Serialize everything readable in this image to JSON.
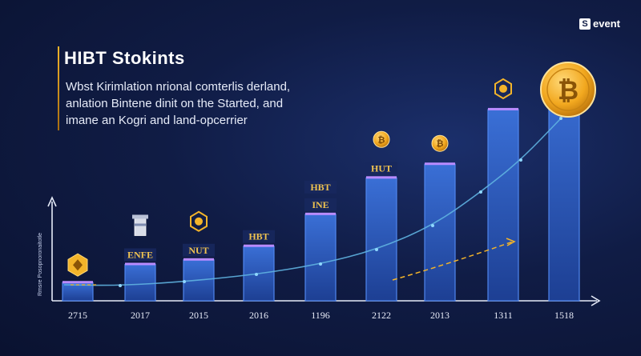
{
  "brand": {
    "name": "event",
    "logo_letter": "S"
  },
  "header": {
    "title": "HIBT Stokints",
    "subtitle_lines": [
      "Wbst Kirimlation nrional comterlis derland,",
      "anlation Bintene dinit on the Started, and",
      "imane an Kogri and land-opcerrier"
    ]
  },
  "colors": {
    "background": "#0f1b44",
    "bar": "#2f62c4",
    "bar_outline": "#4f86ee",
    "bar_cap": "#b98bff",
    "trend": "#5fb3e0",
    "accent": "#f3b42a",
    "coin": "#f2a81f"
  },
  "chart_data": {
    "type": "bar",
    "categories": [
      "2715",
      "2017",
      "2015",
      "2016",
      "1196",
      "2122",
      "2013",
      "1311",
      "1518"
    ],
    "values": [
      2,
      4,
      4.5,
      6,
      9.5,
      13.5,
      15,
      21,
      24
    ],
    "bar_labels": [
      "",
      "ENFE",
      "NUT",
      "HBT",
      "HBT INE",
      "HUT",
      "",
      "",
      ""
    ],
    "icons": [
      "hexagon-icon",
      "lighthouse-icon",
      "hexagon-coin-icon",
      "",
      "",
      "coin-icon",
      "coin-icon",
      "hexagon-coin-icon",
      "bitcoin-icon"
    ],
    "ylabel": "Rmsre Posopnoronaitotle",
    "xlabel": "",
    "ylim": [
      0,
      26
    ],
    "grid": false,
    "trend_line": true,
    "dashed_projection": true
  }
}
